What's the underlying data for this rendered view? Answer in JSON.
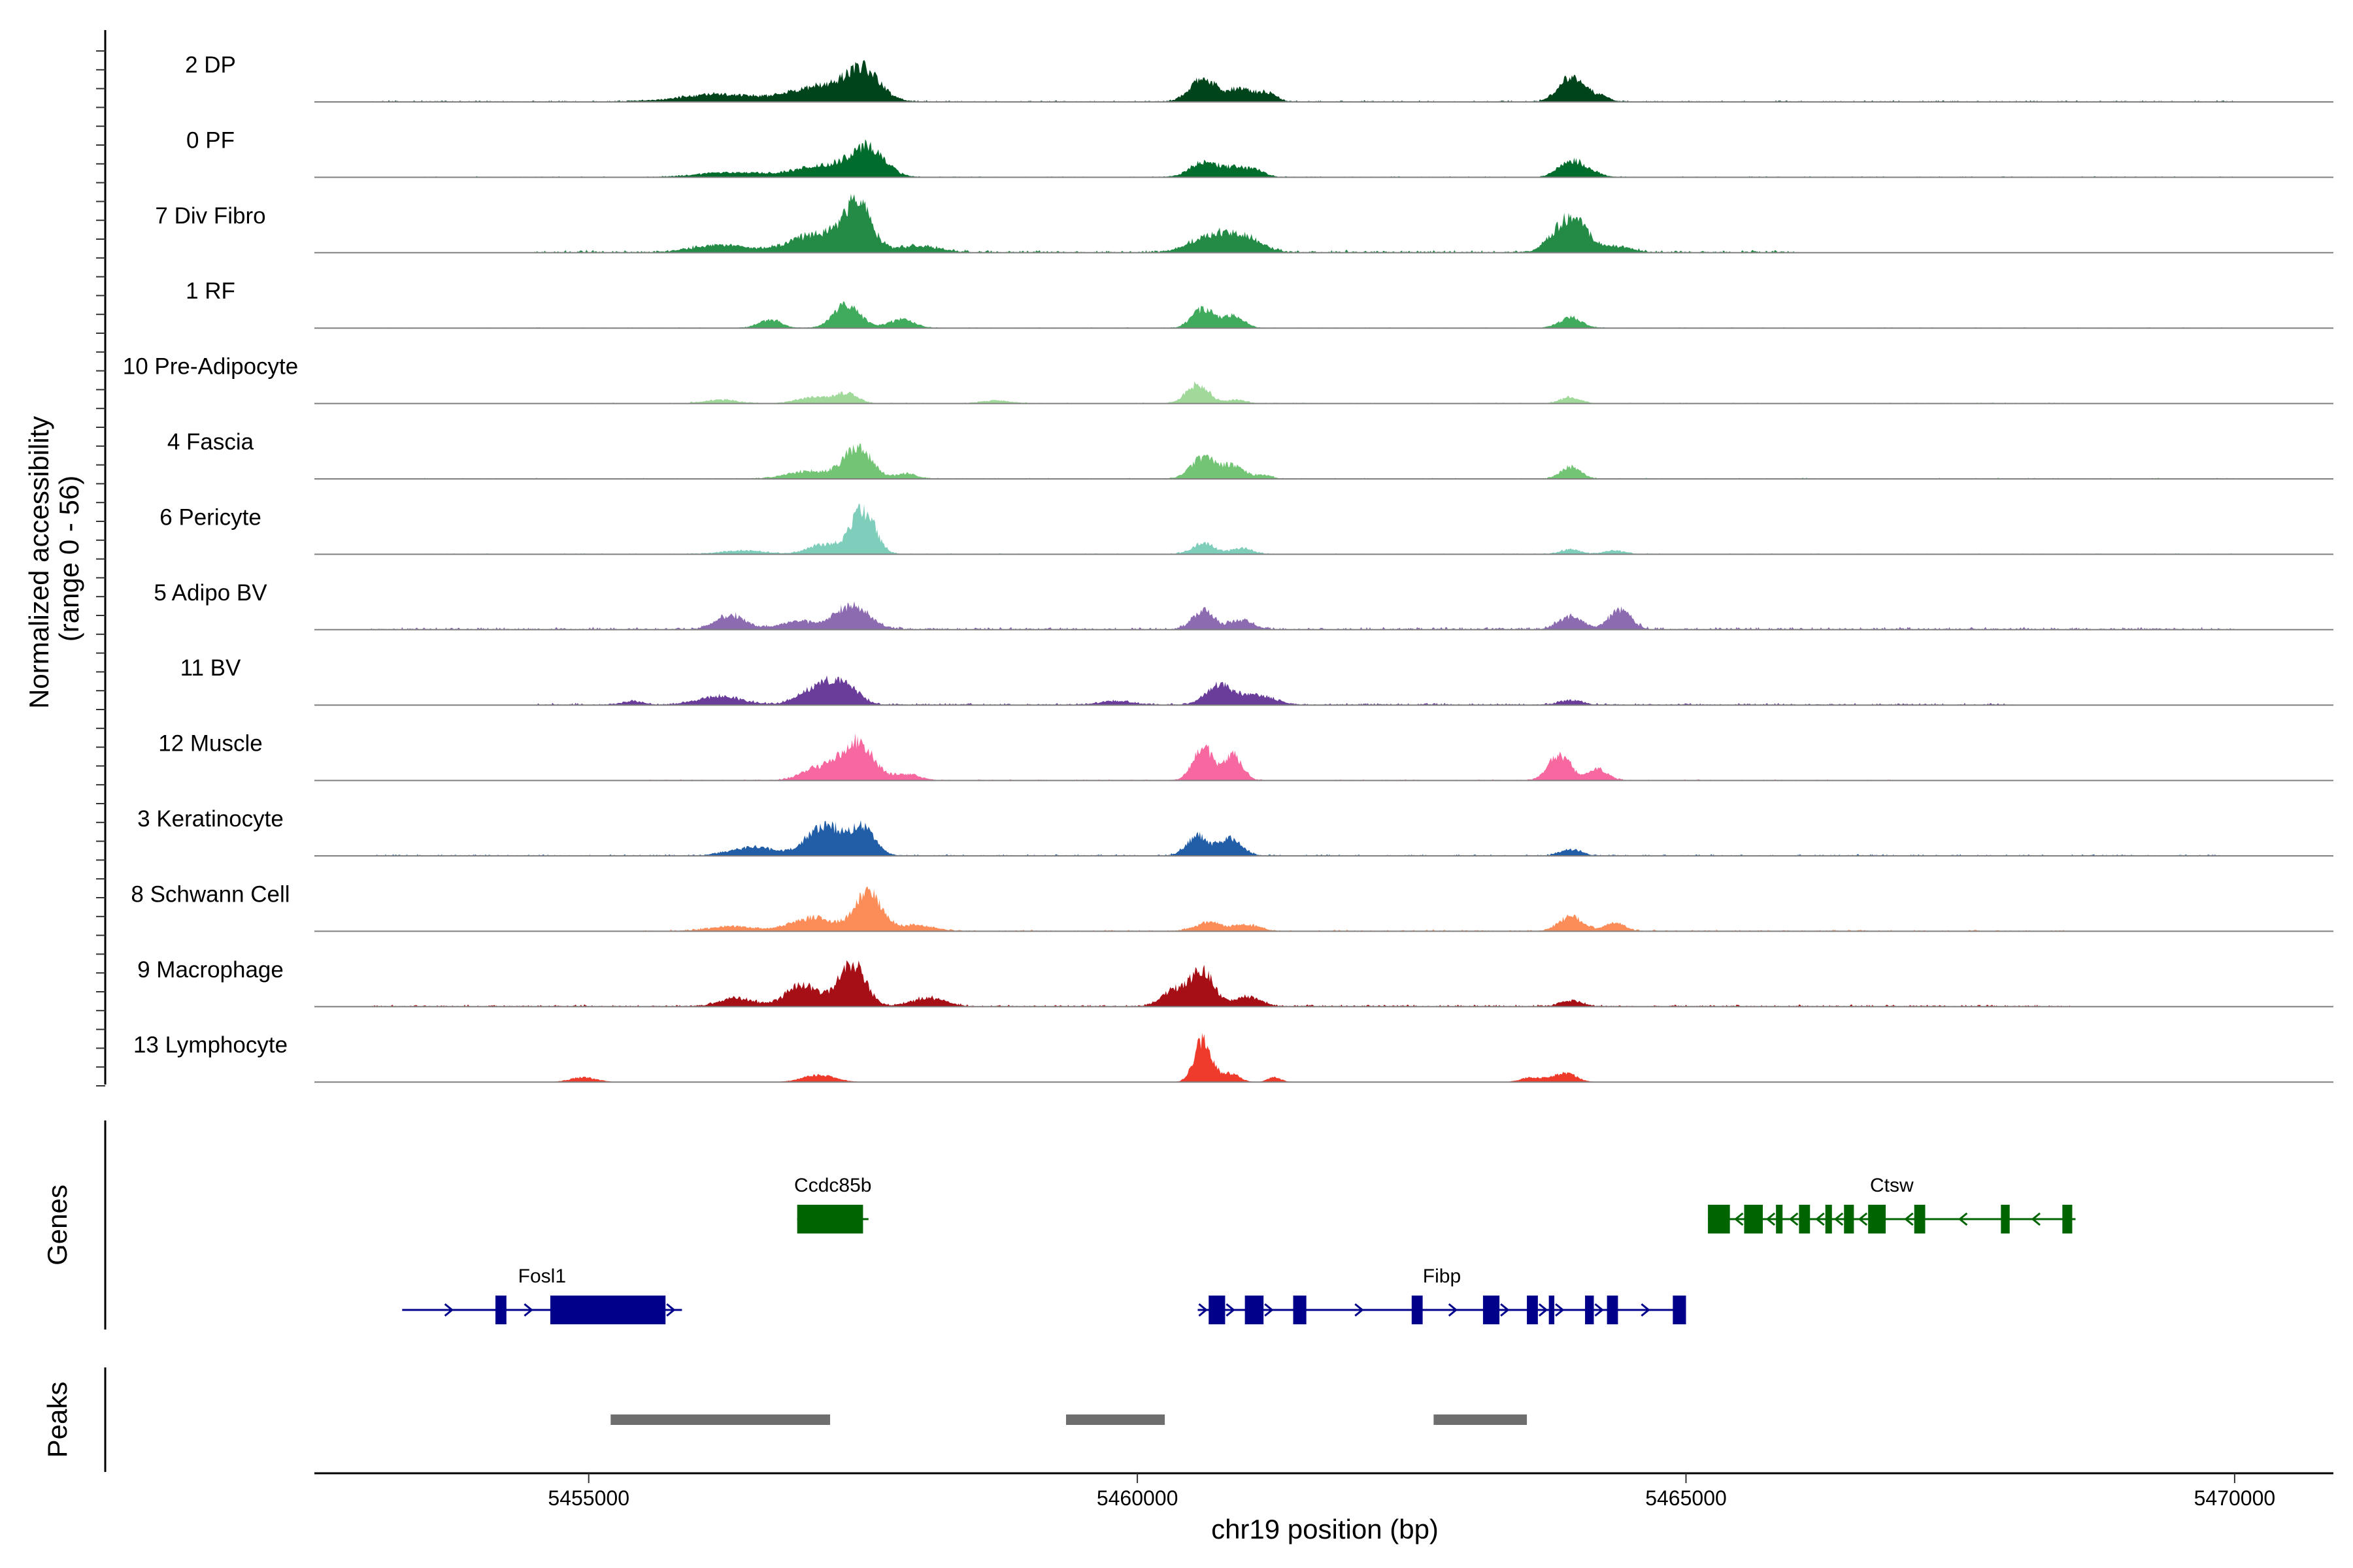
{
  "chart_data": {
    "type": "area",
    "title": "",
    "xlabel": "chr19 position (bp)",
    "ylabel": "Normalized accessibility\n(range 0 - 56)",
    "ylabel_lines": [
      "Normalized accessibility",
      "(range 0 - 56)"
    ],
    "ylim": [
      0,
      56
    ],
    "xlim": [
      5452500,
      5470900
    ],
    "xticks": [
      5455000,
      5460000,
      5465000,
      5470000
    ],
    "xtick_labels": [
      "5455000",
      "5460000",
      "5465000",
      "5470000"
    ],
    "region_labels": {
      "genes": "Genes",
      "peaks": "Peaks"
    },
    "peak_regions": [
      {
        "start": 5455200,
        "end": 5457200
      },
      {
        "start": 5459350,
        "end": 5460250
      },
      {
        "start": 5462700,
        "end": 5463550
      }
    ],
    "tracks": [
      {
        "name": "2 DP",
        "color": "#00441b",
        "range": [
          5453000,
          5470000
        ],
        "noise": 0.03,
        "peaks": [
          [
            5457500,
            150,
            52
          ],
          [
            5457100,
            250,
            25
          ],
          [
            5456200,
            350,
            12
          ],
          [
            5460600,
            120,
            38
          ],
          [
            5460950,
            120,
            22
          ],
          [
            5461200,
            80,
            12
          ],
          [
            5463950,
            110,
            42
          ],
          [
            5464200,
            90,
            10
          ]
        ]
      },
      {
        "name": "0 PF",
        "color": "#006d2c",
        "range": [
          5453500,
          5470000
        ],
        "noise": 0.02,
        "peaks": [
          [
            5457550,
            150,
            46
          ],
          [
            5457150,
            250,
            20
          ],
          [
            5456300,
            300,
            8
          ],
          [
            5460600,
            120,
            26
          ],
          [
            5460900,
            120,
            16
          ],
          [
            5461100,
            80,
            8
          ],
          [
            5463950,
            110,
            28
          ],
          [
            5464150,
            90,
            7
          ]
        ]
      },
      {
        "name": "7 Div Fibro",
        "color": "#238b45",
        "range": [
          5454500,
          5466000
        ],
        "noise": 0.05,
        "peaks": [
          [
            5457450,
            120,
            76
          ],
          [
            5457100,
            250,
            30
          ],
          [
            5456200,
            250,
            12
          ],
          [
            5458000,
            200,
            10
          ],
          [
            5460700,
            200,
            28
          ],
          [
            5461000,
            150,
            18
          ],
          [
            5463950,
            150,
            58
          ],
          [
            5464400,
            120,
            9
          ]
        ]
      },
      {
        "name": "1 RF",
        "color": "#41ab5d",
        "range": [
          5453000,
          5470000
        ],
        "noise": 0.015,
        "peaks": [
          [
            5457350,
            120,
            38
          ],
          [
            5457850,
            120,
            14
          ],
          [
            5456650,
            100,
            14
          ],
          [
            5460600,
            100,
            32
          ],
          [
            5460880,
            90,
            20
          ],
          [
            5463950,
            100,
            18
          ]
        ]
      },
      {
        "name": "10 Pre-Adipocyte",
        "color": "#a1d99b",
        "range": [
          5455000,
          5468500
        ],
        "noise": 0.02,
        "peaks": [
          [
            5457350,
            100,
            16
          ],
          [
            5457050,
            150,
            10
          ],
          [
            5456200,
            150,
            6
          ],
          [
            5460550,
            100,
            32
          ],
          [
            5460900,
            90,
            6
          ],
          [
            5463950,
            90,
            10
          ],
          [
            5458700,
            120,
            5
          ]
        ]
      },
      {
        "name": "4 Fascia",
        "color": "#74c476",
        "range": [
          5453500,
          5470000
        ],
        "noise": 0.02,
        "peaks": [
          [
            5457450,
            130,
            50
          ],
          [
            5457000,
            200,
            12
          ],
          [
            5457900,
            100,
            8
          ],
          [
            5460600,
            110,
            36
          ],
          [
            5460880,
            100,
            22
          ],
          [
            5461150,
            70,
            6
          ],
          [
            5463950,
            90,
            20
          ]
        ]
      },
      {
        "name": "6 Pericyte",
        "color": "#7fcdbb",
        "range": [
          5453500,
          5470000
        ],
        "noise": 0.02,
        "peaks": [
          [
            5457500,
            110,
            72
          ],
          [
            5457150,
            150,
            16
          ],
          [
            5456400,
            200,
            6
          ],
          [
            5460600,
            100,
            18
          ],
          [
            5460950,
            100,
            10
          ],
          [
            5463950,
            90,
            8
          ],
          [
            5464350,
            100,
            6
          ]
        ]
      },
      {
        "name": "5 Adipo BV",
        "color": "#8c6bb1",
        "range": [
          5453000,
          5470000
        ],
        "noise": 0.05,
        "peaks": [
          [
            5457400,
            150,
            40
          ],
          [
            5456300,
            130,
            24
          ],
          [
            5456900,
            150,
            14
          ],
          [
            5460600,
            100,
            30
          ],
          [
            5460950,
            100,
            16
          ],
          [
            5463950,
            110,
            22
          ],
          [
            5464400,
            100,
            32
          ]
        ]
      },
      {
        "name": "11 BV",
        "color": "#6a3d9a",
        "range": [
          5454500,
          5468000
        ],
        "noise": 0.04,
        "peaks": [
          [
            5457300,
            140,
            36
          ],
          [
            5457050,
            150,
            22
          ],
          [
            5456200,
            200,
            14
          ],
          [
            5455400,
            100,
            6
          ],
          [
            5460750,
            120,
            32
          ],
          [
            5461100,
            150,
            16
          ],
          [
            5459800,
            150,
            6
          ],
          [
            5463950,
            100,
            8
          ]
        ]
      },
      {
        "name": "12 Muscle",
        "color": "#f768a1",
        "range": [
          5455500,
          5467000
        ],
        "noise": 0.02,
        "peaks": [
          [
            5457450,
            140,
            64
          ],
          [
            5457100,
            150,
            22
          ],
          [
            5460600,
            90,
            56
          ],
          [
            5460880,
            80,
            42
          ],
          [
            5463850,
            100,
            42
          ],
          [
            5464200,
            90,
            18
          ],
          [
            5457900,
            120,
            10
          ]
        ]
      },
      {
        "name": "3 Keratinocyte",
        "color": "#225ea8",
        "range": [
          5453000,
          5470000
        ],
        "noise": 0.03,
        "peaks": [
          [
            5457150,
            160,
            50
          ],
          [
            5457500,
            110,
            46
          ],
          [
            5456500,
            200,
            14
          ],
          [
            5460550,
            100,
            32
          ],
          [
            5460850,
            100,
            28
          ],
          [
            5463950,
            100,
            10
          ]
        ]
      },
      {
        "name": "8 Schwann Cell",
        "color": "#fc8d59",
        "range": [
          5455500,
          5468500
        ],
        "noise": 0.03,
        "peaks": [
          [
            5457550,
            120,
            64
          ],
          [
            5457050,
            200,
            22
          ],
          [
            5456300,
            200,
            8
          ],
          [
            5458000,
            150,
            10
          ],
          [
            5460650,
            120,
            14
          ],
          [
            5461000,
            120,
            10
          ],
          [
            5463950,
            110,
            24
          ],
          [
            5464350,
            90,
            14
          ]
        ]
      },
      {
        "name": "9 Macrophage",
        "color": "#a50f15",
        "range": [
          5453000,
          5468500
        ],
        "noise": 0.04,
        "peaks": [
          [
            5457400,
            120,
            72
          ],
          [
            5456950,
            150,
            36
          ],
          [
            5456350,
            150,
            14
          ],
          [
            5458100,
            150,
            14
          ],
          [
            5460600,
            100,
            58
          ],
          [
            5460350,
            120,
            28
          ],
          [
            5461000,
            120,
            16
          ],
          [
            5463950,
            100,
            10
          ]
        ]
      },
      {
        "name": "13 Lymphocyte",
        "color": "#ef3b2c",
        "range": [
          5454500,
          5465000
        ],
        "noise": 0.0,
        "peaks": [
          [
            5460600,
            80,
            70
          ],
          [
            5460850,
            80,
            14
          ],
          [
            5457100,
            150,
            12
          ],
          [
            5454950,
            120,
            8
          ],
          [
            5463900,
            100,
            16
          ],
          [
            5463600,
            100,
            8
          ],
          [
            5461250,
            60,
            8
          ]
        ]
      }
    ],
    "genes": [
      {
        "name": "Ccdc85b",
        "strand": "-",
        "color": "#006400",
        "row": 1,
        "start": 5456900,
        "end": 5457550,
        "exons": [
          [
            5456900,
            5457500
          ]
        ]
      },
      {
        "name": "Ctsw",
        "strand": "-",
        "color": "#006400",
        "row": 1,
        "start": 5465200,
        "end": 5468550,
        "exons": [
          [
            5465200,
            5465400
          ],
          [
            5465530,
            5465700
          ],
          [
            5465820,
            5465880
          ],
          [
            5466030,
            5466130
          ],
          [
            5466270,
            5466330
          ],
          [
            5466440,
            5466530
          ],
          [
            5466660,
            5466820
          ],
          [
            5467080,
            5467180
          ],
          [
            5467870,
            5467950
          ],
          [
            5468430,
            5468520
          ]
        ]
      },
      {
        "name": "Fosl1",
        "strand": "+",
        "color": "#00008b",
        "row": 2,
        "start": 5453300,
        "end": 5455850,
        "exons": [
          [
            5454150,
            5454250
          ],
          [
            5454650,
            5455700
          ]
        ]
      },
      {
        "name": "Fibp",
        "strand": "+",
        "color": "#00008b",
        "row": 2,
        "start": 5460550,
        "end": 5465000,
        "exons": [
          [
            5460650,
            5460800
          ],
          [
            5460980,
            5461150
          ],
          [
            5461420,
            5461540
          ],
          [
            5462500,
            5462600
          ],
          [
            5463150,
            5463300
          ],
          [
            5463550,
            5463650
          ],
          [
            5463750,
            5463800
          ],
          [
            5464080,
            5464160
          ],
          [
            5464280,
            5464380
          ],
          [
            5464880,
            5465000
          ]
        ]
      }
    ]
  }
}
